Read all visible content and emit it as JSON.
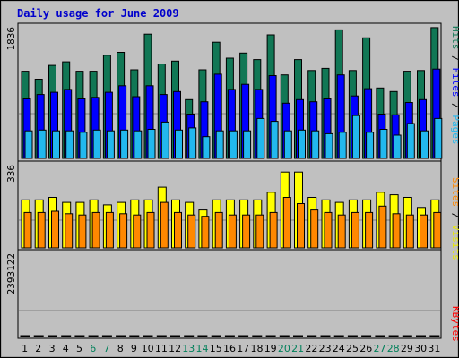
{
  "chart_data": {
    "type": "bar",
    "title": "Daily usage for June 2009",
    "categories": [
      "1",
      "2",
      "3",
      "4",
      "5",
      "6",
      "7",
      "8",
      "9",
      "10",
      "11",
      "12",
      "13",
      "14",
      "15",
      "16",
      "17",
      "18",
      "19",
      "20",
      "21",
      "22",
      "23",
      "24",
      "25",
      "26",
      "27",
      "28",
      "29",
      "30",
      "31"
    ],
    "weekend_days": [
      "6",
      "7",
      "13",
      "14",
      "20",
      "21",
      "27",
      "28"
    ],
    "panels": [
      {
        "tick_label": "1836",
        "ylim": [
          0,
          1836
        ],
        "legend": [
          {
            "text": "Hits",
            "color": "#117755"
          },
          {
            "text": "Files",
            "color": "#0000ff"
          },
          {
            "text": "Pages",
            "color": "#22b8ee"
          }
        ],
        "series": [
          {
            "name": "Hits",
            "color": "#117755",
            "values": [
              1200,
              1090,
              1280,
              1330,
              1200,
              1200,
              1420,
              1460,
              1220,
              1710,
              1300,
              1340,
              810,
              1220,
              1600,
              1380,
              1450,
              1360,
              1700,
              1150,
              1360,
              1210,
              1240,
              1770,
              1210,
              1660,
              970,
              920,
              1200,
              1210,
              1800
            ]
          },
          {
            "name": "Files",
            "color": "#0000ff",
            "values": [
              820,
              880,
              910,
              950,
              820,
              840,
              910,
              1000,
              850,
              1000,
              880,
              920,
              610,
              780,
              1160,
              950,
              1020,
              950,
              1140,
              760,
              810,
              780,
              820,
              1150,
              860,
              960,
              610,
              600,
              770,
              810,
              1230
            ]
          },
          {
            "name": "Pages",
            "color": "#22b8ee",
            "values": [
              380,
              390,
              380,
              380,
              360,
              390,
              380,
              390,
              380,
              400,
              500,
              390,
              420,
              300,
              380,
              380,
              380,
              550,
              510,
              380,
              390,
              380,
              340,
              360,
              590,
              360,
              400,
              320,
              480,
              380,
              550
            ]
          }
        ]
      },
      {
        "tick_label": "336",
        "ylim": [
          0,
          336
        ],
        "legend": [
          {
            "text": "Visits",
            "color": "#e8e800"
          },
          {
            "text": "Sites",
            "color": "#ff8800"
          }
        ],
        "series": [
          {
            "name": "Visits",
            "color": "#ffff00",
            "values": [
              190,
              190,
              200,
              180,
              180,
              190,
              170,
              180,
              190,
              190,
              240,
              190,
              180,
              150,
              190,
              190,
              190,
              190,
              220,
              300,
              300,
              200,
              190,
              180,
              190,
              190,
              220,
              210,
              200,
              160,
              190
            ]
          },
          {
            "name": "Sites",
            "color": "#ff8800",
            "values": [
              140,
              140,
              145,
              135,
              130,
              140,
              140,
              135,
              130,
              140,
              180,
              140,
              130,
              125,
              140,
              130,
              130,
              130,
              140,
              200,
              175,
              150,
              140,
              130,
              140,
              140,
              165,
              135,
              130,
              130,
              140
            ]
          }
        ]
      },
      {
        "tick_label": "2393122",
        "ylim": [
          0,
          2393122
        ],
        "legend": [
          {
            "text": "KBytes",
            "color": "#ff0000"
          }
        ],
        "series": [
          {
            "name": "KBytes",
            "color": "#ff0000",
            "values": [
              280,
              650,
              1100,
              520,
              480,
              520,
              2400,
              950,
              400,
              1150,
              1060,
              590,
              220,
              1370,
              1320,
              750,
              610,
              1040,
              840,
              400,
              460,
              530,
              250,
              1090,
              580,
              2550,
              300,
              370,
              650,
              780,
              700
            ]
          }
        ]
      }
    ]
  }
}
